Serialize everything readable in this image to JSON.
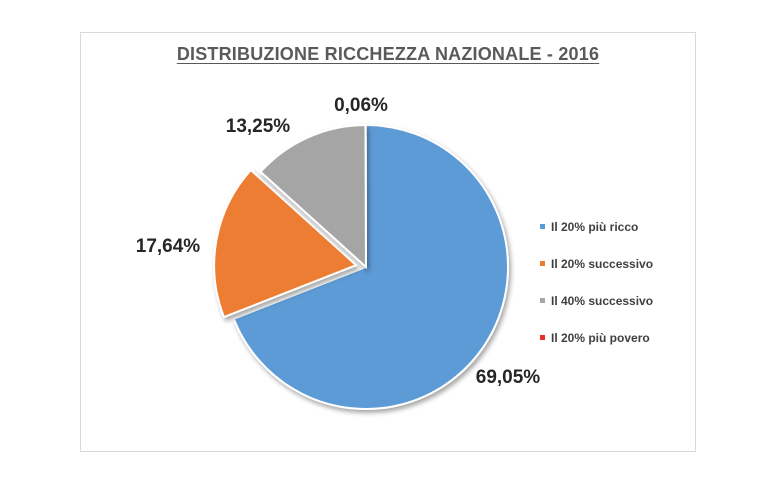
{
  "chart_data": {
    "type": "pie",
    "title": "DISTRIBUZIONE RICCHEZZA NAZIONALE - 2016",
    "slices": [
      {
        "label": "Il 20% più ricco",
        "value": 69.05,
        "display": "69,05%",
        "color": "#5b9bd5"
      },
      {
        "label": "Il 20% successivo",
        "value": 17.64,
        "display": "17,64%",
        "color": "#ed7d31"
      },
      {
        "label": "Il 40% successivo",
        "value": 13.25,
        "display": "13,25%",
        "color": "#a5a5a5"
      },
      {
        "label": "Il 20% più povero",
        "value": 0.06,
        "display": "0,06%",
        "color": "#e8302b"
      }
    ],
    "legend_position": "right",
    "exploded_slice": "Il 20% successivo"
  }
}
